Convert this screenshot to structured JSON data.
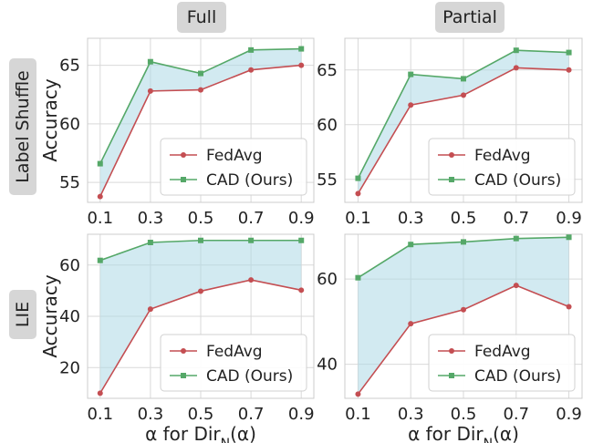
{
  "columns": [
    "Full",
    "Partial"
  ],
  "rows": [
    "Label Shuffle",
    "LIE"
  ],
  "colors": {
    "fedavg": "#c44e52",
    "cad": "#55a868",
    "fill": "#add8e6",
    "grid": "#d9d9d9"
  },
  "chart_data": [
    {
      "type": "line",
      "panel": "Label Shuffle / Full",
      "x": [
        0.1,
        0.3,
        0.5,
        0.7,
        0.9
      ],
      "xticks": [
        "0.1",
        "0.3",
        "0.5",
        "0.7",
        "0.9"
      ],
      "xlabel": "",
      "ylabel": "Accuracy",
      "ylim": [
        53.3,
        67.3
      ],
      "yticks": [
        55,
        60,
        65
      ],
      "grid": true,
      "legend": "lower-right",
      "series": [
        {
          "name": "FedAvg",
          "values": [
            53.8,
            62.8,
            62.9,
            64.6,
            65.0
          ]
        },
        {
          "name": "CAD (Ours)",
          "values": [
            56.6,
            65.3,
            64.3,
            66.3,
            66.4
          ]
        }
      ]
    },
    {
      "type": "line",
      "panel": "Label Shuffle / Partial",
      "x": [
        0.1,
        0.3,
        0.5,
        0.7,
        0.9
      ],
      "xticks": [
        "0.1",
        "0.3",
        "0.5",
        "0.7",
        "0.9"
      ],
      "xlabel": "",
      "ylabel": "",
      "ylim": [
        52.9,
        67.9
      ],
      "yticks": [
        55,
        60,
        65
      ],
      "grid": true,
      "legend": "lower-right",
      "series": [
        {
          "name": "FedAvg",
          "values": [
            53.7,
            61.8,
            62.7,
            65.2,
            65.0
          ]
        },
        {
          "name": "CAD (Ours)",
          "values": [
            55.1,
            64.6,
            64.2,
            66.8,
            66.6
          ]
        }
      ]
    },
    {
      "type": "line",
      "panel": "LIE / Full",
      "x": [
        0.1,
        0.3,
        0.5,
        0.7,
        0.9
      ],
      "xticks": [
        "0.1",
        "0.3",
        "0.5",
        "0.7",
        "0.9"
      ],
      "xlabel": "α for Dir_N(α)",
      "ylabel": "Accuracy",
      "ylim": [
        8,
        72
      ],
      "yticks": [
        20,
        40,
        60
      ],
      "grid": true,
      "legend": "lower-right",
      "series": [
        {
          "name": "FedAvg",
          "values": [
            10.0,
            42.8,
            49.8,
            54.2,
            50.2
          ]
        },
        {
          "name": "CAD (Ours)",
          "values": [
            61.8,
            68.8,
            69.6,
            69.6,
            69.6
          ]
        }
      ]
    },
    {
      "type": "line",
      "panel": "LIE / Partial",
      "x": [
        0.1,
        0.3,
        0.5,
        0.7,
        0.9
      ],
      "xticks": [
        "0.1",
        "0.3",
        "0.5",
        "0.7",
        "0.9"
      ],
      "xlabel": "α for Dir_N(α)",
      "ylabel": "",
      "ylim": [
        32,
        70.5
      ],
      "yticks": [
        40,
        60
      ],
      "grid": true,
      "legend": "lower-right",
      "series": [
        {
          "name": "FedAvg",
          "values": [
            33.0,
            49.5,
            52.8,
            58.5,
            53.5
          ]
        },
        {
          "name": "CAD (Ours)",
          "values": [
            60.3,
            68.1,
            68.7,
            69.5,
            69.8
          ]
        }
      ]
    }
  ]
}
